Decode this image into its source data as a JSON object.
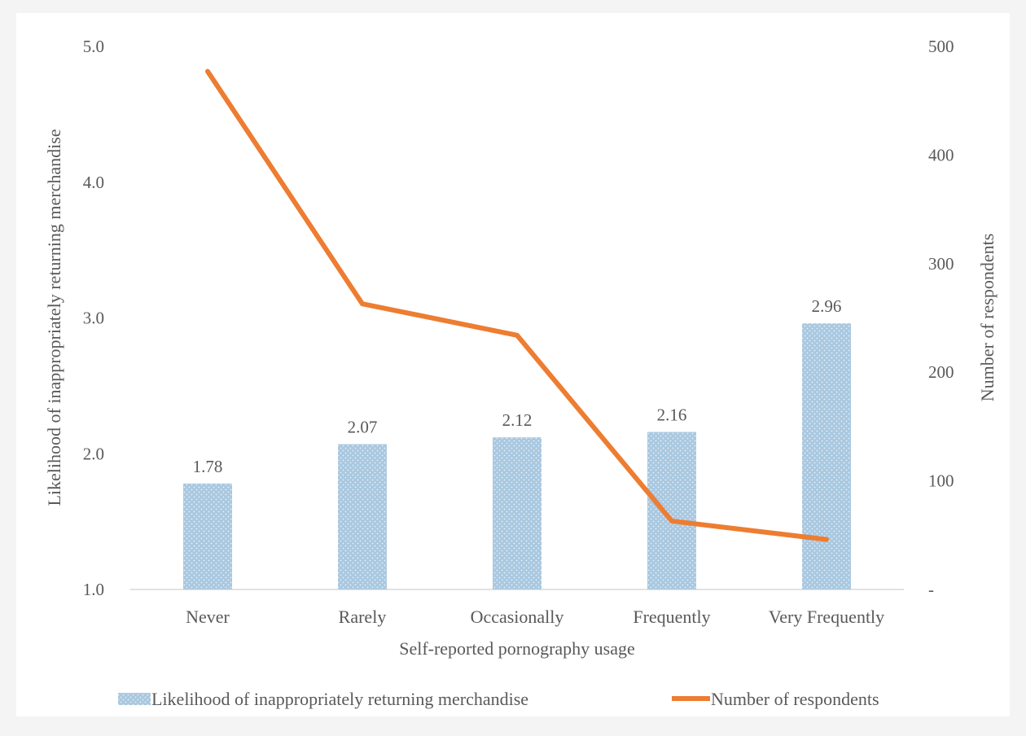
{
  "chart_data": {
    "type": "bar+line",
    "title": "",
    "xlabel": "Self-reported pornography usage",
    "ylabel": "Likelihood of inappropriately returning merchandise",
    "y2label": "Number of respondents",
    "categories": [
      "Never",
      "Rarely",
      "Occasionally",
      "Frequently",
      "Very Frequently"
    ],
    "ylim": [
      1.0,
      5.0
    ],
    "yticks": [
      "1.0",
      "2.0",
      "3.0",
      "4.0",
      "5.0"
    ],
    "y2lim": [
      0,
      500
    ],
    "y2ticks": [
      "-",
      "100",
      "200",
      "300",
      "400",
      "500"
    ],
    "series": [
      {
        "name": "Likelihood of inappropriately returning merchandise",
        "type": "bar",
        "axis": "left",
        "values": [
          1.78,
          2.07,
          2.12,
          2.16,
          2.96
        ],
        "labels": [
          "1.78",
          "2.07",
          "2.12",
          "2.16",
          "2.96"
        ],
        "color": "#a9c8e0"
      },
      {
        "name": "Number of respondents",
        "type": "line",
        "axis": "right",
        "values": [
          477,
          263,
          234,
          63,
          46
        ],
        "color": "#ed7d31"
      }
    ],
    "legend": "bottom",
    "grid": false
  }
}
